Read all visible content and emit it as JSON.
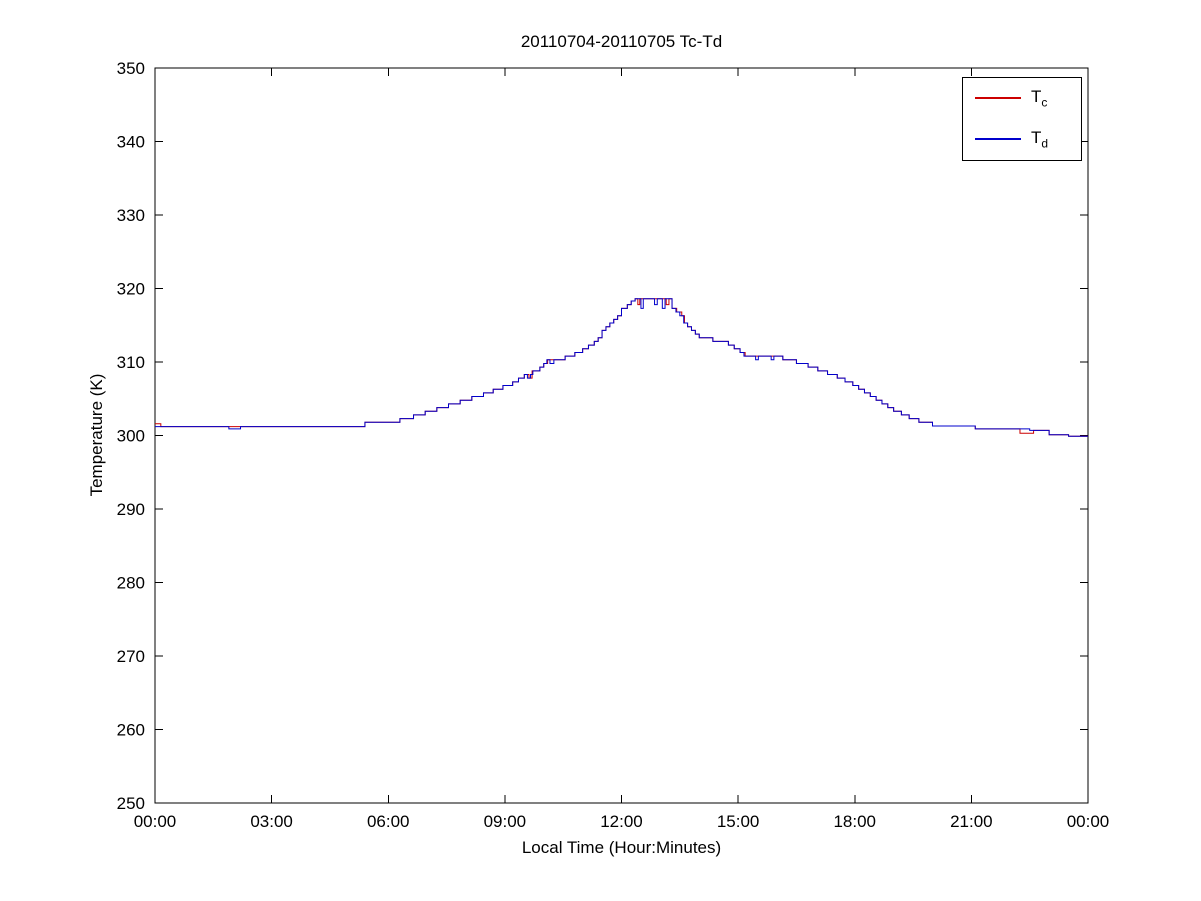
{
  "chart_data": {
    "type": "line",
    "title": "20110704-20110705 Tc-Td",
    "xlabel": "Local Time (Hour:Minutes)",
    "ylabel": "Temperature (K)",
    "xlim": [
      0,
      24
    ],
    "ylim": [
      250,
      350
    ],
    "grid": false,
    "axis_color": "#000000",
    "background": "#ffffff",
    "xticks": {
      "values": [
        0,
        3,
        6,
        9,
        12,
        15,
        18,
        21,
        24
      ],
      "labels": [
        "00:00",
        "03:00",
        "06:00",
        "09:00",
        "12:00",
        "15:00",
        "18:00",
        "21:00",
        "00:00"
      ]
    },
    "yticks": {
      "values": [
        250,
        260,
        270,
        280,
        290,
        300,
        310,
        320,
        330,
        340,
        350
      ],
      "labels": [
        "250",
        "260",
        "270",
        "280",
        "290",
        "300",
        "310",
        "320",
        "330",
        "340",
        "350"
      ]
    },
    "legend": {
      "position": "top-right",
      "entries": [
        {
          "label": "T",
          "sub": "c",
          "series": "Tc",
          "color": "#cc0000"
        },
        {
          "label": "T",
          "sub": "d",
          "series": "Td",
          "color": "#0000cc"
        }
      ]
    },
    "series": [
      {
        "name": "Tc",
        "color": "#cc0000",
        "step": "after",
        "points": [
          [
            0.0,
            301.6
          ],
          [
            0.15,
            301.2
          ],
          [
            5.4,
            301.8
          ],
          [
            6.3,
            302.3
          ],
          [
            6.65,
            302.8
          ],
          [
            6.95,
            303.3
          ],
          [
            7.25,
            303.8
          ],
          [
            7.55,
            304.3
          ],
          [
            7.85,
            304.8
          ],
          [
            8.15,
            305.3
          ],
          [
            8.45,
            305.8
          ],
          [
            8.7,
            306.3
          ],
          [
            8.95,
            306.8
          ],
          [
            9.2,
            307.3
          ],
          [
            9.35,
            307.8
          ],
          [
            9.5,
            308.3
          ],
          [
            9.62,
            307.8
          ],
          [
            9.7,
            308.8
          ],
          [
            9.9,
            309.3
          ],
          [
            10.0,
            309.8
          ],
          [
            10.1,
            310.3
          ],
          [
            10.55,
            310.8
          ],
          [
            10.8,
            311.3
          ],
          [
            11.0,
            311.8
          ],
          [
            11.15,
            312.3
          ],
          [
            11.3,
            312.8
          ],
          [
            11.4,
            313.3
          ],
          [
            11.5,
            314.3
          ],
          [
            11.6,
            314.8
          ],
          [
            11.7,
            315.3
          ],
          [
            11.8,
            315.8
          ],
          [
            11.9,
            316.3
          ],
          [
            12.0,
            317.3
          ],
          [
            12.15,
            317.8
          ],
          [
            12.25,
            318.3
          ],
          [
            12.35,
            318.6
          ],
          [
            12.42,
            317.8
          ],
          [
            12.47,
            318.6
          ],
          [
            13.15,
            317.8
          ],
          [
            13.22,
            318.6
          ],
          [
            13.3,
            317.3
          ],
          [
            13.42,
            316.8
          ],
          [
            13.55,
            316.3
          ],
          [
            13.62,
            315.3
          ],
          [
            13.7,
            314.8
          ],
          [
            13.8,
            314.3
          ],
          [
            13.9,
            313.8
          ],
          [
            14.0,
            313.3
          ],
          [
            14.35,
            312.8
          ],
          [
            14.75,
            312.3
          ],
          [
            14.9,
            311.8
          ],
          [
            15.05,
            311.3
          ],
          [
            15.18,
            310.8
          ],
          [
            16.15,
            310.3
          ],
          [
            16.5,
            309.8
          ],
          [
            16.8,
            309.3
          ],
          [
            17.05,
            308.8
          ],
          [
            17.3,
            308.3
          ],
          [
            17.55,
            307.8
          ],
          [
            17.75,
            307.3
          ],
          [
            17.95,
            306.8
          ],
          [
            18.1,
            306.3
          ],
          [
            18.25,
            305.8
          ],
          [
            18.4,
            305.3
          ],
          [
            18.55,
            304.8
          ],
          [
            18.7,
            304.3
          ],
          [
            18.85,
            303.8
          ],
          [
            19.0,
            303.3
          ],
          [
            19.2,
            302.8
          ],
          [
            19.4,
            302.3
          ],
          [
            19.65,
            301.8
          ],
          [
            20.0,
            301.3
          ],
          [
            21.1,
            300.9
          ],
          [
            22.25,
            300.3
          ],
          [
            22.6,
            300.7
          ],
          [
            23.0,
            300.1
          ],
          [
            23.5,
            299.9
          ],
          [
            24.0,
            299.9
          ]
        ]
      },
      {
        "name": "Td",
        "color": "#0000cc",
        "step": "after",
        "points": [
          [
            0.0,
            301.2
          ],
          [
            1.9,
            300.9
          ],
          [
            2.2,
            301.2
          ],
          [
            5.4,
            301.8
          ],
          [
            6.3,
            302.3
          ],
          [
            6.65,
            302.8
          ],
          [
            6.95,
            303.3
          ],
          [
            7.25,
            303.8
          ],
          [
            7.55,
            304.3
          ],
          [
            7.85,
            304.8
          ],
          [
            8.15,
            305.3
          ],
          [
            8.45,
            305.8
          ],
          [
            8.7,
            306.3
          ],
          [
            8.95,
            306.8
          ],
          [
            9.2,
            307.3
          ],
          [
            9.35,
            307.8
          ],
          [
            9.5,
            308.3
          ],
          [
            9.58,
            307.8
          ],
          [
            9.66,
            308.3
          ],
          [
            9.72,
            308.8
          ],
          [
            9.9,
            309.3
          ],
          [
            10.0,
            309.8
          ],
          [
            10.08,
            310.3
          ],
          [
            10.16,
            309.8
          ],
          [
            10.26,
            310.3
          ],
          [
            10.55,
            310.8
          ],
          [
            10.8,
            311.3
          ],
          [
            11.0,
            311.8
          ],
          [
            11.15,
            312.3
          ],
          [
            11.3,
            312.8
          ],
          [
            11.4,
            313.3
          ],
          [
            11.5,
            314.3
          ],
          [
            11.6,
            314.8
          ],
          [
            11.7,
            315.3
          ],
          [
            11.8,
            315.8
          ],
          [
            11.9,
            316.3
          ],
          [
            12.0,
            317.3
          ],
          [
            12.15,
            317.8
          ],
          [
            12.25,
            318.3
          ],
          [
            12.35,
            318.6
          ],
          [
            12.5,
            317.3
          ],
          [
            12.56,
            318.6
          ],
          [
            12.85,
            317.8
          ],
          [
            12.92,
            318.6
          ],
          [
            13.05,
            317.3
          ],
          [
            13.12,
            318.6
          ],
          [
            13.3,
            317.3
          ],
          [
            13.4,
            316.8
          ],
          [
            13.5,
            316.3
          ],
          [
            13.6,
            315.3
          ],
          [
            13.7,
            314.8
          ],
          [
            13.8,
            314.3
          ],
          [
            13.9,
            313.8
          ],
          [
            14.0,
            313.3
          ],
          [
            14.35,
            312.8
          ],
          [
            14.75,
            312.3
          ],
          [
            14.9,
            311.8
          ],
          [
            15.05,
            311.3
          ],
          [
            15.15,
            310.8
          ],
          [
            15.45,
            310.3
          ],
          [
            15.52,
            310.8
          ],
          [
            15.85,
            310.3
          ],
          [
            15.92,
            310.8
          ],
          [
            16.15,
            310.3
          ],
          [
            16.5,
            309.8
          ],
          [
            16.8,
            309.3
          ],
          [
            17.05,
            308.8
          ],
          [
            17.3,
            308.3
          ],
          [
            17.55,
            307.8
          ],
          [
            17.75,
            307.3
          ],
          [
            17.95,
            306.8
          ],
          [
            18.1,
            306.3
          ],
          [
            18.25,
            305.8
          ],
          [
            18.4,
            305.3
          ],
          [
            18.55,
            304.8
          ],
          [
            18.7,
            304.3
          ],
          [
            18.85,
            303.8
          ],
          [
            19.0,
            303.3
          ],
          [
            19.2,
            302.8
          ],
          [
            19.4,
            302.3
          ],
          [
            19.65,
            301.8
          ],
          [
            20.0,
            301.3
          ],
          [
            21.1,
            300.9
          ],
          [
            22.5,
            300.7
          ],
          [
            23.0,
            300.1
          ],
          [
            23.5,
            299.9
          ],
          [
            24.0,
            299.9
          ]
        ]
      }
    ]
  }
}
